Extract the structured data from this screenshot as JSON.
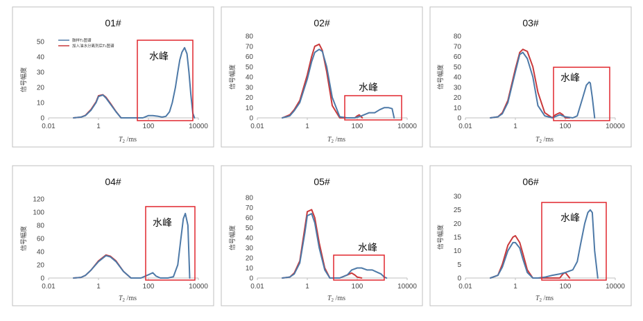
{
  "colors": {
    "series1": "#4d79a7",
    "series2": "#c9383a",
    "box": "#e0262d",
    "axis": "#bfbfbf",
    "frame": "#bfbfbf"
  },
  "common": {
    "xlabel_main": "T",
    "xlabel_sub": "2",
    "xlabel_unit": " /ms",
    "ylabel": "信号幅度",
    "xticks": [
      "0.01",
      "1",
      "100",
      "10000"
    ],
    "annotation": "水峰"
  },
  "legend": {
    "placement": "top-left",
    "entries": [
      "鼓样T₂图谱",
      "加入油水分离剂后T₂图谱"
    ]
  },
  "chart_data": [
    {
      "type": "line",
      "title": "01#",
      "xscale": "log",
      "xlim": [
        0.01,
        10000
      ],
      "ylim": [
        0,
        50
      ],
      "yticks": [
        0,
        10,
        20,
        30,
        40,
        50
      ],
      "series": [
        {
          "name": "鼓样T₂图谱",
          "x": [
            0.1,
            0.2,
            0.3,
            0.5,
            0.8,
            1,
            1.5,
            2,
            3,
            5,
            8,
            60,
            100,
            150,
            250,
            350,
            500,
            700,
            900,
            1200,
            1500,
            1800,
            2200,
            2800,
            3500,
            4200,
            5000,
            6000,
            7000
          ],
          "y": [
            0,
            0.5,
            1.5,
            5,
            10,
            14,
            15,
            13,
            9,
            4,
            0,
            0,
            1.5,
            1.5,
            1,
            0.5,
            1,
            4,
            10,
            20,
            30,
            38,
            43,
            46,
            42,
            30,
            15,
            3,
            0
          ]
        },
        {
          "name": "加入油水分离剂后T₂图谱",
          "x": [
            0.1,
            0.2,
            0.3,
            0.5,
            0.8,
            1,
            1.5,
            2,
            3,
            5,
            8
          ],
          "y": [
            0,
            0.5,
            1.7,
            5.5,
            10.5,
            14.5,
            15.2,
            13.5,
            9.5,
            4.2,
            0
          ]
        }
      ]
    },
    {
      "type": "line",
      "title": "02#",
      "xscale": "log",
      "xlim": [
        0.01,
        10000
      ],
      "ylim": [
        0,
        80
      ],
      "yticks": [
        0,
        10,
        20,
        30,
        40,
        50,
        60,
        70,
        80
      ],
      "series": [
        {
          "name": "鼓样T₂图谱",
          "x": [
            0.1,
            0.2,
            0.3,
            0.5,
            1,
            1.5,
            2,
            3,
            4,
            6,
            10,
            20,
            40,
            80,
            150,
            300,
            500,
            800,
            1200,
            1800,
            2500,
            3000
          ],
          "y": [
            0,
            2,
            7,
            15,
            38,
            55,
            64,
            67,
            65,
            50,
            20,
            1,
            0,
            0,
            2,
            5,
            5,
            8,
            10,
            10,
            9,
            0
          ]
        },
        {
          "name": "加入油水分离剂后T₂图谱",
          "x": [
            0.1,
            0.2,
            0.3,
            0.5,
            1,
            1.5,
            2,
            3,
            4,
            6,
            10,
            20,
            40,
            80,
            100,
            120,
            160
          ],
          "y": [
            0,
            3,
            8,
            17,
            42,
            60,
            70,
            72,
            66,
            45,
            12,
            0,
            0,
            0,
            2,
            3,
            0
          ]
        }
      ]
    },
    {
      "type": "line",
      "title": "03#",
      "xscale": "log",
      "xlim": [
        0.01,
        10000
      ],
      "ylim": [
        0,
        80
      ],
      "yticks": [
        0,
        10,
        20,
        30,
        40,
        50,
        60,
        70,
        80
      ],
      "series": [
        {
          "name": "鼓样T₂图谱",
          "x": [
            0.1,
            0.2,
            0.3,
            0.5,
            1,
            1.5,
            2,
            3,
            5,
            8,
            15,
            30,
            60,
            100,
            200,
            300,
            500,
            700,
            900,
            1000,
            1200,
            1500
          ],
          "y": [
            0,
            1,
            4,
            15,
            45,
            62,
            64,
            58,
            40,
            12,
            2,
            0,
            3,
            1,
            0,
            2,
            20,
            32,
            35,
            34,
            20,
            0
          ]
        },
        {
          "name": "加入油水分离剂后T₂图谱",
          "x": [
            0.1,
            0.2,
            0.3,
            0.5,
            1,
            1.5,
            2,
            3,
            5,
            8,
            15,
            30,
            40,
            60,
            80,
            100,
            150
          ],
          "y": [
            0,
            1,
            5,
            17,
            48,
            64,
            67,
            65,
            50,
            25,
            5,
            0,
            3,
            5,
            3,
            0,
            0
          ]
        }
      ]
    },
    {
      "type": "line",
      "title": "04#",
      "xscale": "log",
      "xlim": [
        0.01,
        10000
      ],
      "ylim": [
        0,
        120
      ],
      "yticks": [
        0,
        20,
        40,
        60,
        80,
        100,
        120
      ],
      "series": [
        {
          "name": "鼓样T₂图谱",
          "x": [
            0.1,
            0.2,
            0.3,
            0.5,
            1,
            2,
            3,
            5,
            10,
            20,
            50,
            100,
            150,
            200,
            300,
            600,
            1000,
            1500,
            2000,
            2500,
            3000,
            3800,
            4500
          ],
          "y": [
            0,
            1,
            4,
            12,
            25,
            34,
            32,
            25,
            10,
            0,
            0,
            5,
            8,
            3,
            0,
            0,
            2,
            20,
            60,
            90,
            98,
            80,
            0
          ]
        },
        {
          "name": "加入油水分离剂后T₂图谱",
          "x": [
            0.1,
            0.2,
            0.3,
            0.5,
            1,
            2,
            3,
            5,
            10,
            20
          ],
          "y": [
            0,
            1,
            4,
            12,
            26,
            35,
            33,
            26,
            10,
            0
          ]
        }
      ]
    },
    {
      "type": "line",
      "title": "05#",
      "xscale": "log",
      "xlim": [
        0.01,
        10000
      ],
      "ylim": [
        0,
        80
      ],
      "yticks": [
        0,
        10,
        20,
        30,
        40,
        50,
        60,
        70,
        80
      ],
      "series": [
        {
          "name": "鼓样T₂图谱",
          "x": [
            0.1,
            0.2,
            0.3,
            0.5,
            0.8,
            1,
            1.5,
            2,
            3,
            5,
            8,
            20,
            40,
            60,
            100,
            150,
            250,
            400,
            600,
            900,
            1200,
            1500
          ],
          "y": [
            0,
            1,
            4,
            15,
            45,
            62,
            64,
            55,
            30,
            8,
            0,
            0,
            3,
            8,
            10,
            10,
            8,
            8,
            6,
            4,
            1,
            0
          ]
        },
        {
          "name": "加入油水分离剂后T₂图谱",
          "x": [
            0.1,
            0.2,
            0.3,
            0.5,
            0.8,
            1,
            1.5,
            2,
            3,
            5,
            8,
            20,
            40,
            60,
            80,
            100,
            150
          ],
          "y": [
            0,
            1,
            5,
            17,
            50,
            66,
            68,
            60,
            35,
            10,
            0,
            0,
            3,
            5,
            3,
            1,
            0
          ]
        }
      ]
    },
    {
      "type": "line",
      "title": "06#",
      "xscale": "log",
      "xlim": [
        0.01,
        10000
      ],
      "ylim": [
        0,
        30
      ],
      "yticks": [
        0,
        5,
        10,
        15,
        20,
        25,
        30
      ],
      "series": [
        {
          "name": "鼓样T₂图谱",
          "x": [
            0.1,
            0.2,
            0.3,
            0.5,
            0.8,
            1,
            1.5,
            2,
            3,
            5,
            8,
            15,
            30,
            60,
            100,
            200,
            300,
            400,
            600,
            800,
            1000,
            1200,
            1500,
            2000
          ],
          "y": [
            0,
            1,
            4,
            10,
            13,
            13,
            11,
            7,
            2,
            0,
            0,
            0.3,
            1,
            1.5,
            2,
            3,
            6,
            12,
            20,
            24,
            25,
            24,
            10,
            0
          ]
        },
        {
          "name": "加入油水分离剂后T₂图谱",
          "x": [
            0.1,
            0.2,
            0.3,
            0.5,
            0.8,
            1,
            1.5,
            2,
            3,
            5,
            8,
            60,
            80,
            100,
            150
          ],
          "y": [
            0,
            1,
            5,
            12,
            15,
            15.5,
            13,
            9,
            3,
            0,
            0,
            0,
            1.5,
            2,
            0
          ]
        }
      ]
    }
  ]
}
